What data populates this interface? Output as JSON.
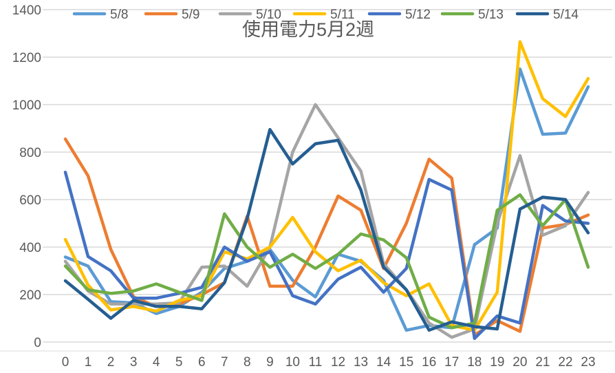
{
  "chart_data": {
    "type": "line",
    "title": "使用電力5月2週",
    "xlabel": "",
    "ylabel": "",
    "ylim": [
      0,
      1400
    ],
    "yticks": [
      0,
      200,
      400,
      600,
      800,
      1000,
      1200,
      1400
    ],
    "grid": true,
    "legend_position": "top",
    "x": [
      0,
      1,
      2,
      3,
      4,
      5,
      6,
      7,
      8,
      9,
      10,
      11,
      12,
      13,
      14,
      15,
      16,
      17,
      18,
      19,
      20,
      21,
      22,
      23
    ],
    "series": [
      {
        "name": "5/8",
        "color": "#5B9BD5",
        "values": [
          358,
          320,
          170,
          165,
          120,
          150,
          210,
          310,
          340,
          390,
          260,
          190,
          370,
          340,
          260,
          50,
          70,
          60,
          410,
          480,
          1150,
          875,
          880,
          1075
        ]
      },
      {
        "name": "5/9",
        "color": "#ED7D31",
        "values": [
          855,
          700,
          390,
          190,
          150,
          160,
          200,
          250,
          530,
          235,
          235,
          400,
          615,
          555,
          310,
          500,
          770,
          690,
          30,
          90,
          45,
          480,
          495,
          535
        ]
      },
      {
        "name": "5/10",
        "color": "#A5A5A5",
        "values": [
          340,
          215,
          160,
          160,
          160,
          165,
          315,
          320,
          235,
          400,
          800,
          1000,
          860,
          720,
          330,
          220,
          80,
          20,
          55,
          500,
          785,
          450,
          490,
          630
        ]
      },
      {
        "name": "5/11",
        "color": "#FFC000",
        "values": [
          432,
          240,
          135,
          150,
          130,
          175,
          195,
          380,
          350,
          400,
          525,
          380,
          300,
          345,
          250,
          195,
          245,
          70,
          50,
          210,
          1265,
          1025,
          950,
          1110
        ]
      },
      {
        "name": "5/12",
        "color": "#4472C4",
        "values": [
          715,
          360,
          300,
          185,
          185,
          205,
          230,
          400,
          340,
          380,
          195,
          160,
          265,
          315,
          210,
          310,
          685,
          640,
          15,
          110,
          80,
          575,
          510,
          500
        ]
      },
      {
        "name": "5/13",
        "color": "#70AD47",
        "values": [
          320,
          220,
          205,
          215,
          245,
          210,
          175,
          540,
          400,
          315,
          370,
          310,
          370,
          455,
          430,
          355,
          105,
          60,
          80,
          555,
          620,
          490,
          600,
          315
        ]
      },
      {
        "name": "5/14",
        "color": "#255E91",
        "values": [
          258,
          180,
          100,
          175,
          150,
          150,
          140,
          250,
          520,
          895,
          750,
          835,
          850,
          640,
          315,
          220,
          50,
          85,
          65,
          55,
          560,
          610,
          600,
          460
        ]
      }
    ]
  }
}
